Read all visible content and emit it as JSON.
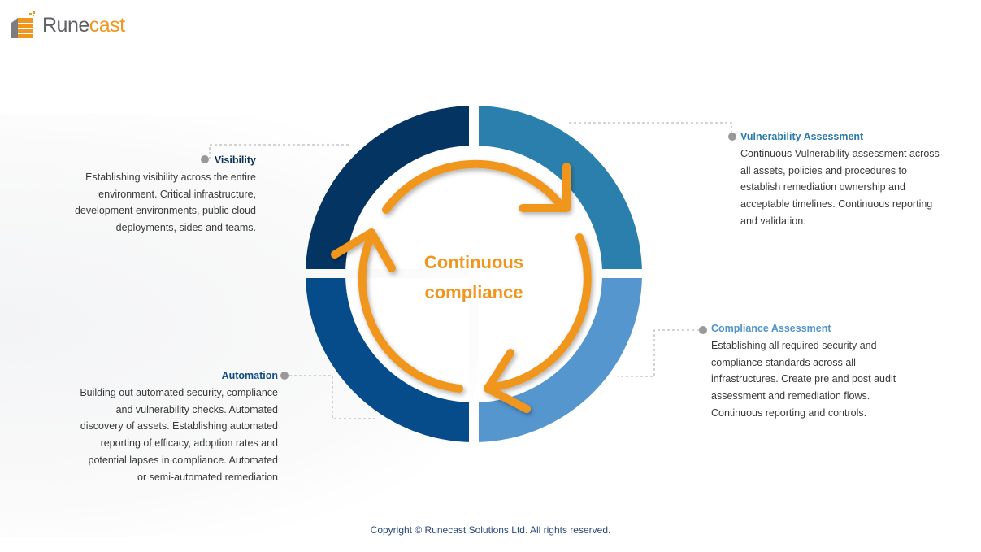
{
  "logo": {
    "text_part1": "Rune",
    "text_part2": "cast"
  },
  "center": {
    "line1": "Continuous",
    "line2": "compliance"
  },
  "sections": {
    "visibility": {
      "title": "Visibility",
      "lines": [
        "Establishing visibility across the entire",
        "environment. Critical infrastructure,",
        "development environments, public cloud",
        "deployments, sides and teams."
      ],
      "color": "#0b2f5a"
    },
    "vulnerability": {
      "title": "Vulnerability Assessment",
      "lines": [
        "Continuous Vulnerability assessment across",
        "all assets, policies and procedures to",
        "establish remediation ownership and",
        "acceptable timelines. Continuous reporting",
        "and validation."
      ],
      "color": "#2a7aab"
    },
    "compliance": {
      "title": "Compliance Assessment",
      "lines": [
        "Establishing all required security and",
        "compliance standards across all",
        "infrastructures. Create pre and post audit",
        "assessment and remediation flows.",
        "Continuous reporting and controls."
      ],
      "color": "#5294cc"
    },
    "automation": {
      "title": "Automation",
      "lines": [
        "Building out automated security, compliance",
        "and vulnerability checks. Automated",
        "discovery of assets. Establishing automated",
        "reporting of efficacy, adoption rates and",
        "potential lapses in compliance. Automated",
        "or semi-automated remediation"
      ],
      "color": "#0e4a86"
    }
  },
  "colors": {
    "ring_top_left": "#033462",
    "ring_top_right": "#2b7fad",
    "ring_bottom_right": "#5596cf",
    "ring_bottom_left": "#064b8a",
    "arrows": "#f0961f"
  },
  "footer": "Copyright ©  Runecast Solutions Ltd. All rights reserved."
}
